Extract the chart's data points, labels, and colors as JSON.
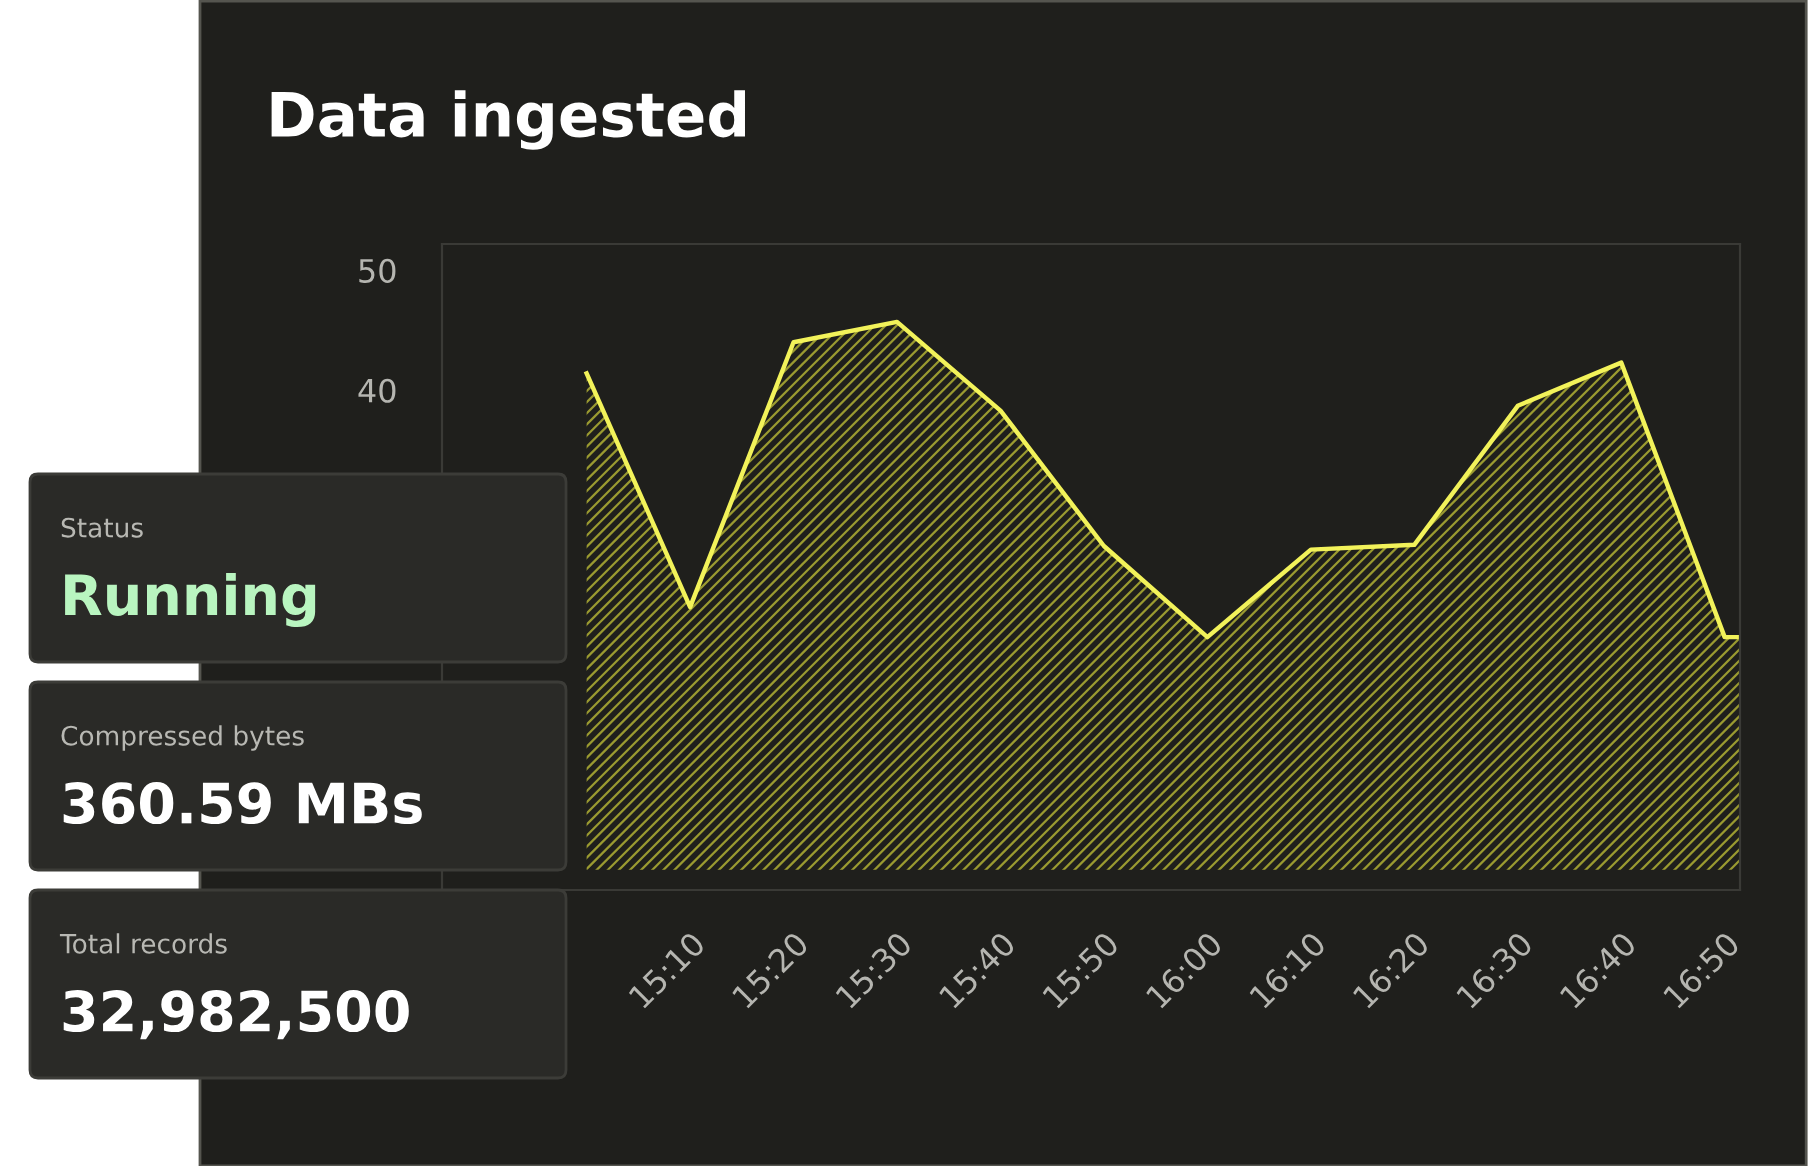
{
  "chart_data": [
    {
      "type": "area",
      "title": "Data ingested",
      "x": [
        15.0,
        15.1667,
        15.3333,
        15.5,
        15.6667,
        15.8333,
        16.0,
        16.1667,
        16.3333,
        16.5,
        16.6667,
        16.8333,
        16.858
      ],
      "series": [
        {
          "color": "#f2f25a",
          "values": [
            41.4,
            21.9,
            44.0,
            45.7,
            38.3,
            27.0,
            19.4,
            26.7,
            27.1,
            38.7,
            42.3,
            19.4,
            19.4
          ]
        }
      ],
      "xlim": [
        14.767,
        16.858
      ],
      "xticks": [
        {
          "value": 15.1667,
          "label": "15:10"
        },
        {
          "value": 15.3333,
          "label": "15:20"
        },
        {
          "value": 15.5,
          "label": "15:30"
        },
        {
          "value": 15.6667,
          "label": "15:40"
        },
        {
          "value": 15.8333,
          "label": "15:50"
        },
        {
          "value": 16.0,
          "label": "16:00"
        },
        {
          "value": 16.1667,
          "label": "16:10"
        },
        {
          "value": 16.3333,
          "label": "16:20"
        },
        {
          "value": 16.5,
          "label": "16:30"
        },
        {
          "value": 16.6667,
          "label": "16:40"
        },
        {
          "value": 16.8333,
          "label": "16:50"
        }
      ],
      "ylim": [
        -1.7,
        52.2
      ],
      "yticks": [
        40,
        50
      ],
      "grid": false,
      "legend": false
    },
    {
      "type": "other",
      "annotations": [
        "Status",
        "Running",
        "Compressed bytes",
        "360.59 MBs",
        "Total records",
        "32,982,500"
      ]
    }
  ]
}
